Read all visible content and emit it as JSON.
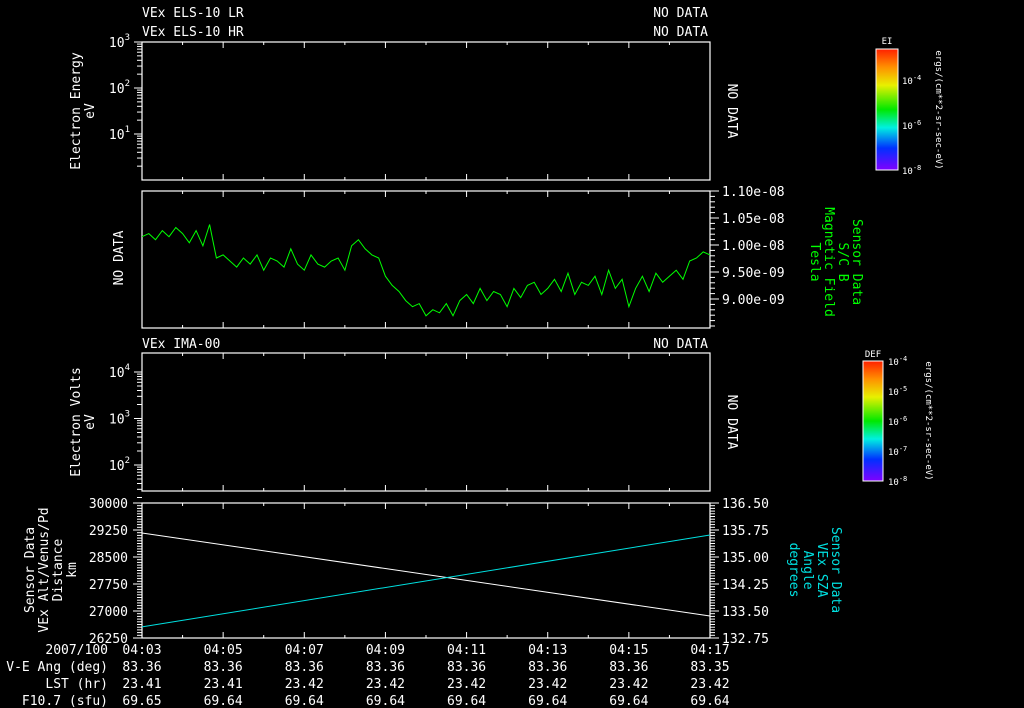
{
  "colors": {
    "background": "#000000",
    "axes": "#ffffff",
    "mag_field": "#00ff00",
    "sza": "#00e0e0",
    "altitude": "#ffffff"
  },
  "panel1": {
    "title_lr": "VEx ELS-10 LR",
    "status_lr": "NO DATA",
    "title_hr": "VEx ELS-10 HR",
    "status_hr": "NO DATA",
    "ylabel": [
      "Electron Energy",
      "eV"
    ],
    "yticks": [
      {
        "base": "10",
        "exp": "3"
      },
      {
        "base": "10",
        "exp": "2"
      },
      {
        "base": "10",
        "exp": "1"
      }
    ],
    "no_data": "NO DATA",
    "colorbar": {
      "title": "EI",
      "ticks": [
        {
          "base": "10",
          "exp": "-4"
        },
        {
          "base": "10",
          "exp": "-6"
        },
        {
          "base": "10",
          "exp": "-8"
        }
      ],
      "unit": "ergs/(cm**2-sr-sec-eV)"
    }
  },
  "panel3": {
    "title": "VEx IMA-00",
    "status": "NO DATA",
    "ylabel": [
      "Electron Volts",
      "eV"
    ],
    "yticks": [
      {
        "base": "10",
        "exp": "4"
      },
      {
        "base": "10",
        "exp": "3"
      },
      {
        "base": "10",
        "exp": "2"
      }
    ],
    "no_data": "NO DATA",
    "colorbar": {
      "title": "DEF",
      "ticks": [
        {
          "base": "10",
          "exp": "-4"
        },
        {
          "base": "10",
          "exp": "-5"
        },
        {
          "base": "10",
          "exp": "-6"
        },
        {
          "base": "10",
          "exp": "-7"
        },
        {
          "base": "10",
          "exp": "-8"
        }
      ],
      "unit": "ergs/(cm**2-sr-sec-eV)"
    }
  },
  "time_axis": {
    "ticks": [
      "04:03",
      "04:05",
      "04:07",
      "04:09",
      "04:11",
      "04:13",
      "04:15",
      "04:17"
    ],
    "rows": [
      {
        "label": "2007/100",
        "values": [
          "04:03",
          "04:05",
          "04:07",
          "04:09",
          "04:11",
          "04:13",
          "04:15",
          "04:17"
        ]
      },
      {
        "label": "V-E Ang (deg)",
        "values": [
          "83.36",
          "83.36",
          "83.36",
          "83.36",
          "83.36",
          "83.36",
          "83.36",
          "83.35"
        ]
      },
      {
        "label": "LST (hr)",
        "values": [
          "23.41",
          "23.41",
          "23.42",
          "23.42",
          "23.42",
          "23.42",
          "23.42",
          "23.42"
        ]
      },
      {
        "label": "F10.7 (sfu)",
        "values": [
          "69.65",
          "69.64",
          "69.64",
          "69.64",
          "69.64",
          "69.64",
          "69.64",
          "69.64"
        ]
      }
    ]
  },
  "chart_data": [
    {
      "type": "line",
      "title": "Sensor Data S/C B Magnetic Field",
      "left_label": "NO DATA",
      "ylabel": [
        "Sensor Data",
        "S/C B",
        "Magnetic Field",
        "Tesla"
      ],
      "yticks": [
        "1.10e-08",
        "1.05e-08",
        "1.00e-08",
        "9.50e-09",
        "9.00e-09"
      ],
      "ylim_nT": [
        8.75,
        11.0
      ],
      "x_minutes_from_0403_step": 0.16667,
      "values_nT": [
        10.25,
        10.3,
        10.2,
        10.35,
        10.25,
        10.4,
        10.3,
        10.15,
        10.35,
        10.1,
        10.45,
        9.9,
        9.95,
        9.85,
        9.75,
        9.9,
        9.8,
        9.95,
        9.7,
        9.9,
        9.85,
        9.75,
        10.05,
        9.8,
        9.7,
        9.95,
        9.8,
        9.75,
        9.85,
        9.9,
        9.7,
        10.1,
        10.2,
        10.05,
        9.95,
        9.9,
        9.6,
        9.45,
        9.35,
        9.2,
        9.1,
        9.15,
        8.95,
        9.05,
        9.0,
        9.15,
        8.95,
        9.2,
        9.3,
        9.15,
        9.4,
        9.2,
        9.35,
        9.3,
        9.1,
        9.4,
        9.25,
        9.45,
        9.5,
        9.3,
        9.4,
        9.55,
        9.35,
        9.65,
        9.3,
        9.5,
        9.45,
        9.6,
        9.3,
        9.7,
        9.4,
        9.55,
        9.1,
        9.4,
        9.6,
        9.35,
        9.65,
        9.5,
        9.6,
        9.7,
        9.55,
        9.85,
        9.9,
        10.0,
        9.95
      ]
    },
    {
      "type": "line",
      "x": [
        "04:03",
        "04:17"
      ],
      "series": [
        {
          "name": "VEx Alt/Venus/Pd Distance",
          "axis": "left",
          "unit": "km",
          "values": [
            29167,
            26861
          ]
        },
        {
          "name": "VEx SZA Angle",
          "axis": "right",
          "unit": "degrees",
          "values": [
            133.06,
            135.61
          ]
        }
      ],
      "ylabel_left": [
        "Sensor Data",
        "VEx Alt/Venus/Pd",
        "Distance",
        "km"
      ],
      "ylabel_right": [
        "Sensor Data",
        "VEx SZA",
        "Angle",
        "degrees"
      ],
      "yticks_left": [
        "30000",
        "29250",
        "28500",
        "27750",
        "27000",
        "26250"
      ],
      "yticks_right": [
        "136.50",
        "135.75",
        "135.00",
        "134.25",
        "133.50",
        "132.75"
      ],
      "ylim_left": [
        26250,
        30000
      ],
      "ylim_right": [
        132.75,
        136.5
      ]
    }
  ]
}
